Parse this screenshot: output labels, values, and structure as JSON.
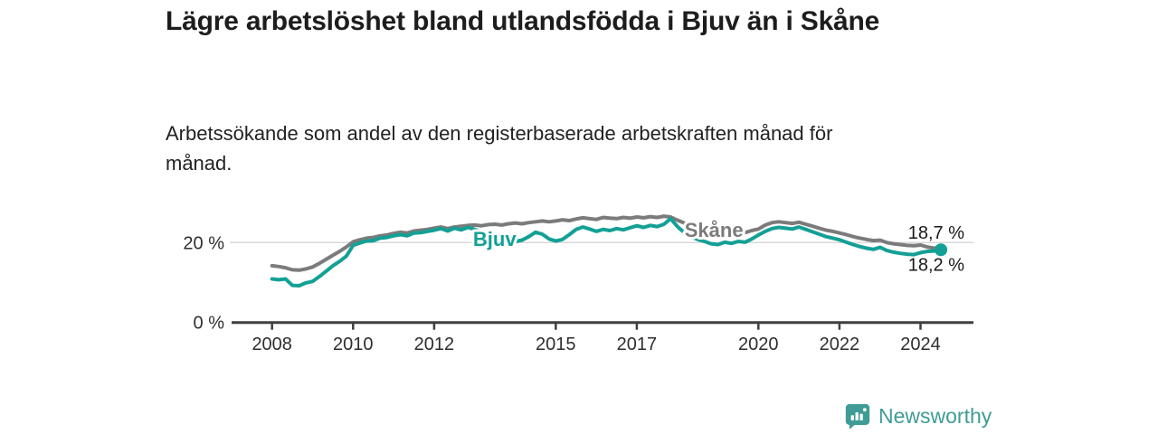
{
  "header": {
    "title": "Lägre arbetslöshet bland utlandsfödda i Bjuv än i Skåne",
    "subtitle": "Arbetssökande som andel av den registerbaserade arbetskraften månad för månad."
  },
  "chart_data": {
    "type": "line",
    "unit": "%",
    "x_start": 2008.0,
    "x_step_years": 0.1667,
    "x_ticks": [
      {
        "year": 2008,
        "label": "2008"
      },
      {
        "year": 2010,
        "label": "2010"
      },
      {
        "year": 2012,
        "label": "2012"
      },
      {
        "year": 2015,
        "label": "2015"
      },
      {
        "year": 2017,
        "label": "2017"
      },
      {
        "year": 2020,
        "label": "2020"
      },
      {
        "year": 2022,
        "label": "2022"
      },
      {
        "year": 2024,
        "label": "2024"
      }
    ],
    "y_ticks": [
      {
        "value": 0,
        "label": "0 %"
      },
      {
        "value": 20,
        "label": "20 %"
      }
    ],
    "ylim": [
      0,
      28.5
    ],
    "grid": "horizontal gridline at 20% only",
    "legend_position": "inline labels on lines",
    "colors": {
      "skane_gray": "#7b7b7b",
      "bjuv_teal": "#13a095",
      "axis": "#3f3f3f",
      "gridline": "#d9d9d9",
      "value_text": "#1a1a1a"
    },
    "series": [
      {
        "name": "Skåne",
        "color": "#7b7b7b",
        "label_anchor": {
          "year": 2018.18,
          "value": 21.4
        },
        "last_value_label": "18,7 %",
        "end_dot": false,
        "values": [
          14.2,
          14.0,
          13.7,
          13.2,
          13.1,
          13.4,
          13.9,
          14.8,
          15.8,
          16.8,
          17.8,
          18.9,
          20.2,
          20.7,
          21.1,
          21.3,
          21.7,
          21.9,
          22.3,
          22.6,
          22.4,
          22.9,
          23.1,
          23.3,
          23.6,
          23.9,
          23.5,
          23.9,
          24.1,
          24.3,
          24.4,
          24.2,
          24.5,
          24.6,
          24.4,
          24.7,
          24.9,
          24.7,
          25.0,
          25.2,
          25.4,
          25.2,
          25.4,
          25.7,
          25.5,
          25.9,
          26.2,
          26.0,
          25.8,
          26.3,
          26.1,
          26.0,
          26.3,
          26.1,
          26.4,
          26.2,
          26.5,
          26.3,
          26.6,
          26.4,
          25.6,
          24.9,
          24.2,
          23.6,
          23.0,
          22.6,
          22.4,
          22.1,
          21.9,
          22.2,
          22.5,
          23.0,
          23.4,
          24.4,
          25.0,
          25.2,
          25.0,
          24.8,
          25.1,
          24.6,
          24.1,
          23.6,
          23.1,
          22.8,
          22.4,
          22.0,
          21.5,
          21.1,
          20.8,
          20.5,
          20.6,
          20.0,
          19.7,
          19.5,
          19.3,
          19.2,
          19.4,
          18.9,
          18.6,
          18.7
        ]
      },
      {
        "name": "Bjuv",
        "color": "#13a095",
        "label_anchor": {
          "year": 2012.96,
          "value": 19.2
        },
        "last_value_label": "18,2 %",
        "end_dot": true,
        "values": [
          10.9,
          10.7,
          10.9,
          9.3,
          9.2,
          9.9,
          10.3,
          11.5,
          12.8,
          14.2,
          15.3,
          16.6,
          19.3,
          19.9,
          20.4,
          20.5,
          21.1,
          21.3,
          21.7,
          22.0,
          21.7,
          22.4,
          22.5,
          22.8,
          23.1,
          23.5,
          22.9,
          23.6,
          23.2,
          23.8,
          23.3,
          22.7,
          22.4,
          21.9,
          21.0,
          20.5,
          20.3,
          20.6,
          21.5,
          22.6,
          22.1,
          20.9,
          20.4,
          20.8,
          22.0,
          23.3,
          23.9,
          23.4,
          22.8,
          23.3,
          23.0,
          23.5,
          23.2,
          23.7,
          24.2,
          23.8,
          24.3,
          24.0,
          24.6,
          26.0,
          24.0,
          22.5,
          21.5,
          20.8,
          20.3,
          19.7,
          19.5,
          20.1,
          19.8,
          20.3,
          20.1,
          20.9,
          21.9,
          22.8,
          23.5,
          23.8,
          23.6,
          23.4,
          23.9,
          23.3,
          22.7,
          22.1,
          21.5,
          21.1,
          20.7,
          20.1,
          19.5,
          19.0,
          18.6,
          18.3,
          18.8,
          18.0,
          17.6,
          17.3,
          17.1,
          17.0,
          17.5,
          17.8,
          17.9,
          18.2
        ]
      }
    ]
  },
  "footer": {
    "brand": "Newsworthy",
    "brand_color": "#3f9c95",
    "icon": "newsworthy-speech-bubble-bar-chart-icon"
  }
}
